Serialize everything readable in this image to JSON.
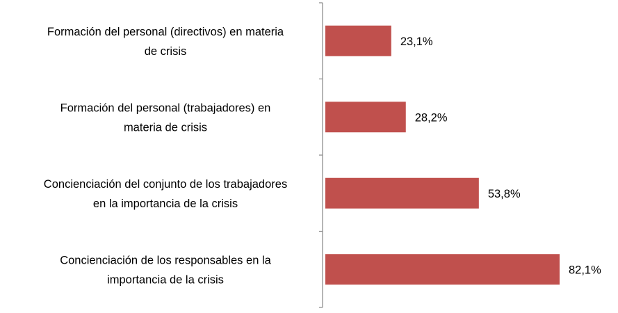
{
  "chart_data": {
    "type": "bar",
    "orientation": "horizontal",
    "categories": [
      "Formación del personal (directivos) en materia de crisis",
      "Formación del personal (trabajadores) en materia de crisis",
      "Concienciación del conjunto de los trabajadores en la importancia de la crisis",
      "Concienciación de los responsables en la importancia de la crisis"
    ],
    "category_lines": [
      [
        "Formación del personal (directivos) en materia",
        "de crisis"
      ],
      [
        "Formación del personal (trabajadores) en",
        "materia de crisis"
      ],
      [
        "Concienciación del conjunto de los trabajadores",
        "en la importancia de la crisis"
      ],
      [
        "Concienciación de los responsables en la",
        "importancia de la crisis"
      ]
    ],
    "values": [
      23.1,
      28.2,
      53.8,
      82.1
    ],
    "data_labels": [
      "23,1%",
      "28,2%",
      "53,8%",
      "82,1%"
    ],
    "xlim": [
      0,
      100
    ],
    "title": "",
    "xlabel": "",
    "ylabel": "",
    "grid": false,
    "legend": "none",
    "bar_color": "#c0504d",
    "axis_color": "#868686"
  }
}
